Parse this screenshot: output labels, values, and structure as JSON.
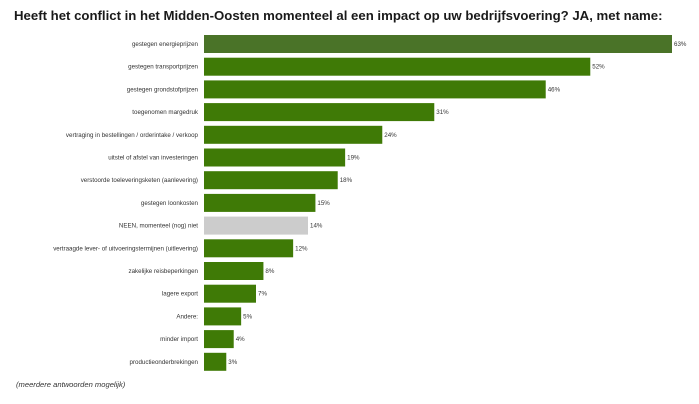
{
  "title": "Heeft het conflict in het Midden-Oosten momenteel al een impact op uw bedrijfsvoering? JA, met name:",
  "footnote": "(meerdere antwoorden mogelijk)",
  "colors": {
    "highlight": "#4a7328",
    "bar": "#3f7a06",
    "neutral": "#cccccc",
    "label": "#333333"
  },
  "chart_data": {
    "type": "bar",
    "orientation": "horizontal",
    "categories": [
      "gestegen energieprijzen",
      "gestegen transportprijzen",
      "gestegen grondstofprijzen",
      "toegenomen margedruk",
      "vertraging in bestellingen / orderintake / verkoop",
      "uitstel of afstel van investeringen",
      "verstoorde toeleveringsketen (aanlevering)",
      "gestegen loonkosten",
      "NEEN, momenteel (nog) niet",
      "vertraagde lever- of uitvoeringstermijnen (uitlevering)",
      "zakelijke reisbeperkingen",
      "lagere export",
      "Andere:",
      "minder import",
      "productieonderbrekingen"
    ],
    "values": [
      63,
      52,
      46,
      31,
      24,
      19,
      18,
      15,
      14,
      12,
      8,
      7,
      5,
      4,
      3
    ],
    "value_labels": [
      "63%",
      "52%",
      "46%",
      "31%",
      "24%",
      "19%",
      "18%",
      "15%",
      "14%",
      "12%",
      "8%",
      "7%",
      "5%",
      "4%",
      "3%"
    ],
    "bar_kind": [
      "highlight",
      "bar",
      "bar",
      "bar",
      "bar",
      "bar",
      "bar",
      "bar",
      "neutral",
      "bar",
      "bar",
      "bar",
      "bar",
      "bar",
      "bar"
    ],
    "unit": "%",
    "xlim": [
      0,
      63
    ],
    "grid": false,
    "legend": "none"
  }
}
